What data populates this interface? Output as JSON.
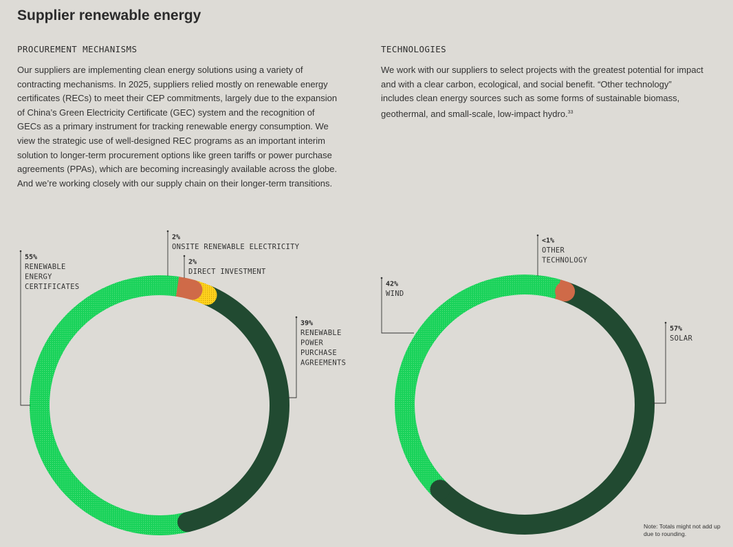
{
  "page": {
    "title": "Supplier renewable energy",
    "note": "Note: Totals might not add up due to rounding."
  },
  "left": {
    "heading": "PROCUREMENT MECHANISMS",
    "body": "Our suppliers are implementing clean energy solutions using a variety of contracting mechanisms. In 2025, suppliers relied mostly on renewable energy certificates (RECs) to meet their CEP commitments, largely due to the expansion of China’s Green Electricity Certificate (GEC) system and the recognition of GECs as a primary instrument for tracking renewable energy consumption. We view the strategic use of well-designed REC programs as an important interim solution to longer-term procurement options like green tariffs or power purchase agreements (PPAs), which are becoming increasingly available across the globe. And we’re working closely with our supply chain on their longer-term transitions."
  },
  "right": {
    "heading": "TECHNOLOGIES",
    "body": "We work with our suppliers to select projects with the greatest potential for impact and with a clear carbon, ecological, and social benefit. “Other technology” includes clean energy sources such as some forms of sustainable biomass, geothermal, and small-scale, low-impact hydro.",
    "footnote": "33"
  },
  "colors": {
    "bright_green": "#19d25a",
    "dark_green": "#214a31",
    "orange": "#cf6a48",
    "yellow": "#ffd21e",
    "background": "#dddbd6"
  },
  "chart_data": [
    {
      "type": "pie",
      "donut": true,
      "slices": [
        {
          "label": "RENEWABLE ENERGY CERTIFICATES",
          "value": 55,
          "display": "55%",
          "color": "#19d25a"
        },
        {
          "label": "ONSITE RENEWABLE ELECTRICITY",
          "value": 2,
          "display": "2%",
          "color": "#cf6a48"
        },
        {
          "label": "DIRECT INVESTMENT",
          "value": 2,
          "display": "2%",
          "color": "#ffd21e"
        },
        {
          "label": "RENEWABLE POWER PURCHASE AGREEMENTS",
          "value": 39,
          "display": "39%",
          "color": "#214a31"
        }
      ]
    },
    {
      "type": "pie",
      "donut": true,
      "slices": [
        {
          "label": "WIND",
          "value": 42,
          "display": "42%",
          "color": "#19d25a"
        },
        {
          "label": "OTHER TECHNOLOGY",
          "value": 1,
          "display": "<1%",
          "color": "#cf6a48"
        },
        {
          "label": "SOLAR",
          "value": 57,
          "display": "57%",
          "color": "#214a31"
        }
      ]
    }
  ]
}
